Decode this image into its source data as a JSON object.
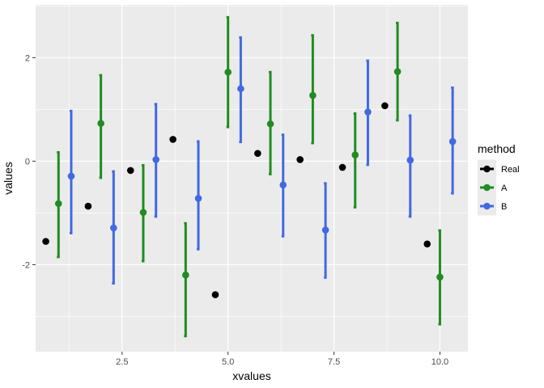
{
  "chart_data": {
    "type": "scatter",
    "title": "",
    "xlabel": "xvalues",
    "ylabel": "values",
    "xlim": [
      0.46,
      10.66
    ],
    "ylim": [
      -3.68,
      3.02
    ],
    "x_ticks": [
      2.5,
      5.0,
      7.5,
      10.0
    ],
    "x_tick_labels": [
      "2.5",
      "5.0",
      "7.5",
      "10.0"
    ],
    "y_ticks": [
      -2,
      0,
      2
    ],
    "y_tick_labels": [
      "-2",
      "0",
      "2"
    ],
    "grid": true,
    "legend": {
      "title": "method",
      "placement": "right",
      "entries": [
        "Real",
        "A",
        "B"
      ]
    },
    "series": [
      {
        "name": "Real",
        "color": "#000000",
        "error_bars": false,
        "x": [
          0.7,
          1.7,
          2.7,
          3.7,
          4.7,
          5.7,
          6.7,
          7.7,
          8.7,
          9.7
        ],
        "y": [
          -1.55,
          -0.87,
          -0.18,
          0.42,
          -2.58,
          0.15,
          0.03,
          -0.12,
          1.07,
          -1.6
        ]
      },
      {
        "name": "A",
        "color": "#228b22",
        "error_bars": true,
        "x": [
          1,
          2,
          3,
          4,
          5,
          6,
          7,
          8,
          9,
          10
        ],
        "y": [
          -0.82,
          0.73,
          -0.99,
          -2.2,
          1.72,
          0.72,
          1.27,
          0.12,
          1.73,
          -2.24
        ],
        "y_low": [
          -1.85,
          -0.32,
          -1.93,
          -3.38,
          0.66,
          -0.25,
          0.35,
          -0.89,
          0.79,
          -3.15
        ],
        "y_high": [
          0.17,
          1.66,
          -0.08,
          -1.2,
          2.78,
          1.72,
          2.43,
          0.92,
          2.67,
          -1.34
        ]
      },
      {
        "name": "B",
        "color": "#4169e1",
        "error_bars": true,
        "x": [
          1.3,
          2.3,
          3.3,
          4.3,
          5.3,
          6.3,
          7.3,
          8.3,
          9.3,
          10.3
        ],
        "y": [
          -0.29,
          -1.29,
          0.03,
          -0.72,
          1.4,
          -0.46,
          -1.33,
          0.95,
          0.02,
          0.38
        ],
        "y_low": [
          -1.39,
          -2.36,
          -1.07,
          -1.7,
          0.37,
          -1.45,
          -2.25,
          -0.07,
          -1.07,
          -0.62
        ],
        "y_high": [
          0.97,
          -0.2,
          1.1,
          0.38,
          2.39,
          0.51,
          -0.43,
          1.94,
          0.88,
          1.42
        ]
      }
    ],
    "colors": {
      "panel_background": "#ebebeb",
      "grid_major": "#ffffff",
      "real": "#000000",
      "a": "#228b22",
      "b": "#4169e1"
    }
  }
}
